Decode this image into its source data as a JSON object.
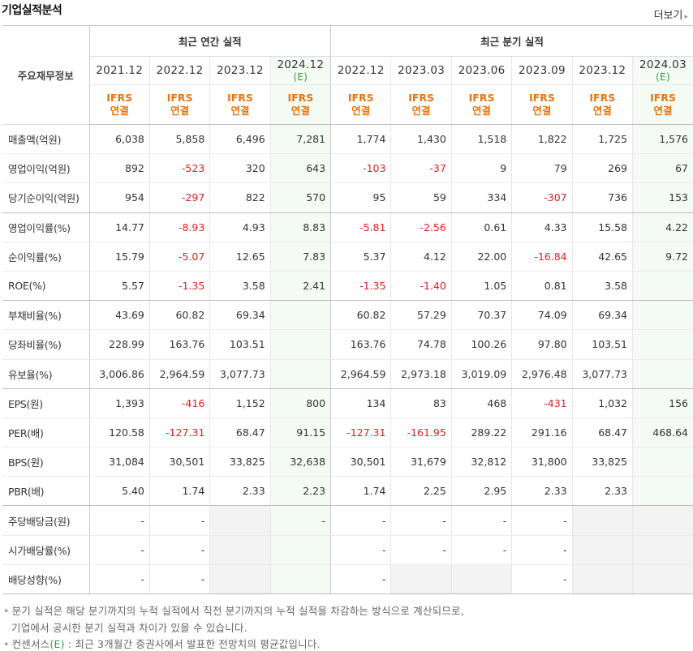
{
  "header": {
    "title": "기업실적분석",
    "more_label": "더보기",
    "more_arrow": "▸"
  },
  "groups": {
    "annual": "최근 연간 실적",
    "quarterly": "최근 분기 실적"
  },
  "row_header": "주요재무정보",
  "ifrs_label": "IFRS",
  "consol_label": "연결",
  "est_label": "(E)",
  "annual_periods": [
    "2021.12",
    "2022.12",
    "2023.12",
    "2024.12"
  ],
  "quarter_periods": [
    "2022.12",
    "2023.03",
    "2023.06",
    "2023.09",
    "2023.12",
    "2024.03"
  ],
  "rows": [
    {
      "label": "매출액(억원)",
      "values": [
        "6,038",
        "5,858",
        "6,496",
        "7,281",
        "1,774",
        "1,430",
        "1,518",
        "1,822",
        "1,725",
        "1,576"
      ]
    },
    {
      "label": "영업이익(억원)",
      "values": [
        "892",
        "-523",
        "320",
        "643",
        "-103",
        "-37",
        "9",
        "79",
        "269",
        "67"
      ]
    },
    {
      "label": "당기순이익(억원)",
      "values": [
        "954",
        "-297",
        "822",
        "570",
        "95",
        "59",
        "334",
        "-307",
        "736",
        "153"
      ]
    },
    {
      "label": "영업이익률(%)",
      "values": [
        "14.77",
        "-8.93",
        "4.93",
        "8.83",
        "-5.81",
        "-2.56",
        "0.61",
        "4.33",
        "15.58",
        "4.22"
      ]
    },
    {
      "label": "순이익률(%)",
      "values": [
        "15.79",
        "-5.07",
        "12.65",
        "7.83",
        "5.37",
        "4.12",
        "22.00",
        "-16.84",
        "42.65",
        "9.72"
      ]
    },
    {
      "label": "ROE(%)",
      "values": [
        "5.57",
        "-1.35",
        "3.58",
        "2.41",
        "-1.35",
        "-1.40",
        "1.05",
        "0.81",
        "3.58",
        ""
      ]
    },
    {
      "label": "부채비율(%)",
      "values": [
        "43.69",
        "60.82",
        "69.34",
        "",
        "60.82",
        "57.29",
        "70.37",
        "74.09",
        "69.34",
        ""
      ]
    },
    {
      "label": "당좌비율(%)",
      "values": [
        "228.99",
        "163.76",
        "103.51",
        "",
        "163.76",
        "74.78",
        "100.26",
        "97.80",
        "103.51",
        ""
      ]
    },
    {
      "label": "유보율(%)",
      "values": [
        "3,006.86",
        "2,964.59",
        "3,077.73",
        "",
        "2,964.59",
        "2,973.18",
        "3,019.09",
        "2,976.48",
        "3,077.73",
        ""
      ]
    },
    {
      "label": "EPS(원)",
      "values": [
        "1,393",
        "-416",
        "1,152",
        "800",
        "134",
        "83",
        "468",
        "-431",
        "1,032",
        "156"
      ]
    },
    {
      "label": "PER(배)",
      "values": [
        "120.58",
        "-127.31",
        "68.47",
        "91.15",
        "-127.31",
        "-161.95",
        "289.22",
        "291.16",
        "68.47",
        "468.64"
      ]
    },
    {
      "label": "BPS(원)",
      "values": [
        "31,084",
        "30,501",
        "33,825",
        "32,638",
        "30,501",
        "31,679",
        "32,812",
        "31,800",
        "33,825",
        ""
      ]
    },
    {
      "label": "PBR(배)",
      "values": [
        "5.40",
        "1.74",
        "2.33",
        "2.23",
        "1.74",
        "2.25",
        "2.95",
        "2.33",
        "2.33",
        ""
      ]
    },
    {
      "label": "주당배당금(원)",
      "values": [
        "-",
        "-",
        "",
        "-",
        "-",
        "-",
        "-",
        "-",
        "",
        ""
      ]
    },
    {
      "label": "시가배당률(%)",
      "values": [
        "-",
        "-",
        "",
        "",
        "-",
        "-",
        "-",
        "-",
        "",
        ""
      ]
    },
    {
      "label": "배당성향(%)",
      "values": [
        "-",
        "-",
        "",
        "",
        "-",
        "",
        "",
        "-",
        "",
        ""
      ]
    }
  ],
  "footnotes": {
    "line1": "분기 실적은 해당 분기까지의 누적 실적에서 직전 분기까지의 누적 실적을 차감하는 방식으로 계산되므로,",
    "line2": "기업에서 공시한 분기 실적과 차이가 있을 수 있습니다.",
    "line3_pre": "컨센서스",
    "line3_e": "(E)",
    "line3_post": " : 최근 3개월간 증권사에서 발표한 전망치의 평균값입니다."
  }
}
